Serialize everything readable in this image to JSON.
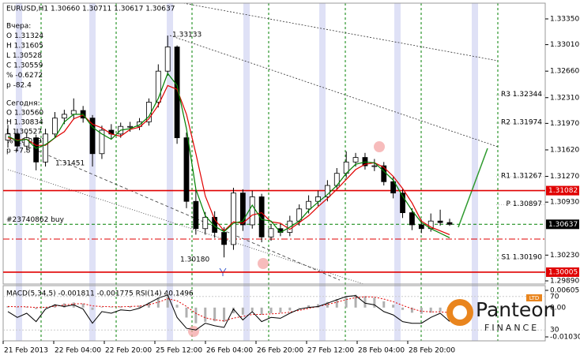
{
  "chart_data": {
    "type": "candlestick",
    "title": "EURUSD,H1  1.30660 1.30711 1.30617 1.30637",
    "info_lines": [
      "Вчера:",
      "O 1.31324",
      "H 1.31605",
      "L 1.30528",
      "C 1.30559",
      "% -0.6272",
      "p -82.4",
      "Сегодня:",
      "O 1.30560",
      "H 1.30834",
      "L 1.30527",
      "% +0.0597",
      "p +7.8"
    ],
    "time_labels": [
      "21 Feb 2013",
      "22 Feb 04:00",
      "22 Feb 20:00",
      "25 Feb 12:00",
      "26 Feb 04:00",
      "26 Feb 20:00",
      "27 Feb 12:00",
      "28 Feb 04:00",
      "28 Feb 20:00"
    ],
    "ylim": [
      1.29848,
      1.33558
    ],
    "yticks": [
      {
        "value": 1.3335,
        "label": "1.33350"
      },
      {
        "value": 1.3301,
        "label": "1.33010"
      },
      {
        "value": 1.3266,
        "label": "1.32660"
      },
      {
        "value": 1.3231,
        "label": "1.32310"
      },
      {
        "value": 1.3197,
        "label": "1.31970"
      },
      {
        "value": 1.3162,
        "label": "1.31620"
      },
      {
        "value": 1.3127,
        "label": "1.31270"
      },
      {
        "value": 1.3093,
        "label": "1.30930"
      },
      {
        "value": 1.3023,
        "label": "1.30230"
      },
      {
        "value": 1.2989,
        "label": "1.29890"
      }
    ],
    "open": [
      1.3175,
      1.3183,
      1.3167,
      1.3178,
      1.3146,
      1.3183,
      1.3204,
      1.3209,
      1.3214,
      1.3204,
      1.3157,
      1.3188,
      1.3183,
      1.3193,
      1.3193,
      1.3199,
      1.3225,
      1.3266,
      1.3298,
      1.3178,
      1.3094,
      1.3058,
      1.3073,
      1.3053,
      1.3037,
      1.3105,
      1.3063,
      1.31,
      1.3047,
      1.3058,
      1.3053,
      1.3068,
      1.3084,
      1.3094,
      1.31,
      1.3115,
      1.3131,
      1.3146,
      1.3152,
      1.3141,
      1.3141,
      1.312,
      1.3105,
      1.3079,
      1.3063,
      1.3058,
      1.3068,
      1.3066
    ],
    "high": [
      1.3195,
      1.319,
      1.3185,
      1.3182,
      1.319,
      1.3212,
      1.3215,
      1.323,
      1.322,
      1.3208,
      1.3194,
      1.3196,
      1.3198,
      1.3199,
      1.3204,
      1.323,
      1.3275,
      1.3313,
      1.33,
      1.3185,
      1.311,
      1.308,
      1.3081,
      1.306,
      1.3112,
      1.311,
      1.3108,
      1.3104,
      1.3064,
      1.3064,
      1.3075,
      1.309,
      1.3102,
      1.3108,
      1.3122,
      1.3138,
      1.316,
      1.3158,
      1.3158,
      1.315,
      1.3146,
      1.3126,
      1.311,
      1.3085,
      1.307,
      1.3078,
      1.3083,
      1.30711
    ],
    "low": [
      1.3165,
      1.316,
      1.3162,
      1.3135,
      1.314,
      1.3178,
      1.3196,
      1.3202,
      1.3198,
      1.314,
      1.315,
      1.3176,
      1.3178,
      1.3186,
      1.3188,
      1.3194,
      1.3218,
      1.326,
      1.317,
      1.3085,
      1.305,
      1.305,
      1.3046,
      1.302,
      1.303,
      1.3055,
      1.3058,
      1.304,
      1.3042,
      1.3048,
      1.3048,
      1.3062,
      1.3078,
      1.3088,
      1.3094,
      1.311,
      1.3125,
      1.314,
      1.3136,
      1.3134,
      1.3115,
      1.3098,
      1.3072,
      1.3056,
      1.3052,
      1.3054,
      1.3062,
      1.30617
    ],
    "close": [
      1.3183,
      1.3167,
      1.3178,
      1.3146,
      1.3183,
      1.3204,
      1.3209,
      1.3214,
      1.3204,
      1.3157,
      1.3188,
      1.3183,
      1.3193,
      1.3193,
      1.3199,
      1.3225,
      1.3266,
      1.3298,
      1.3178,
      1.3094,
      1.3058,
      1.3073,
      1.3053,
      1.3037,
      1.3105,
      1.3063,
      1.31,
      1.3047,
      1.3058,
      1.3053,
      1.3068,
      1.3084,
      1.3094,
      1.31,
      1.3115,
      1.3131,
      1.3146,
      1.3152,
      1.3141,
      1.3141,
      1.312,
      1.3105,
      1.3079,
      1.3063,
      1.3058,
      1.3068,
      1.3066,
      1.30637
    ],
    "up_color": "#ffffff",
    "down_color": "#000000",
    "overlays": [
      {
        "color": "#e00000",
        "values": [
          1.3178,
          1.3175,
          1.3176,
          1.3168,
          1.3168,
          1.3178,
          1.3186,
          1.3203,
          1.3208,
          1.3196,
          1.3191,
          1.3183,
          1.318,
          1.3189,
          1.3192,
          1.3203,
          1.3221,
          1.3247,
          1.3242,
          1.3209,
          1.3157,
          1.3101,
          1.307,
          1.3055,
          1.3067,
          1.3065,
          1.3076,
          1.3079,
          1.3067,
          1.3065,
          1.3057,
          1.3066,
          1.3075,
          1.3087,
          1.3098,
          1.311,
          1.3123,
          1.3136,
          1.3143,
          1.3145,
          1.3139,
          1.3127,
          1.3111,
          1.3092,
          1.3068,
          1.306,
          1.3055,
          1.305
        ]
      },
      {
        "color": "#008000",
        "values": [
          1.318,
          1.3174,
          1.3176,
          1.3164,
          1.3169,
          1.3178,
          1.3199,
          1.3209,
          1.3209,
          1.3192,
          1.3183,
          1.3176,
          1.3188,
          1.319,
          1.3195,
          1.3206,
          1.323,
          1.3263,
          1.3247,
          1.319,
          1.311,
          1.3075,
          1.3061,
          1.3054,
          1.3065,
          1.3068,
          1.3089,
          1.307,
          1.3068,
          1.3053,
          1.306,
          1.3068,
          1.3082,
          1.3093,
          1.3103,
          1.3115,
          1.3131,
          1.3143,
          1.3146,
          1.3145,
          1.3134,
          1.3122,
          1.3101,
          1.3082,
          1.3066,
          1.3058,
          1.3052,
          1.3046
        ]
      }
    ],
    "levels": [
      {
        "value": 1.31082,
        "color": "#e00000",
        "dash": "none"
      },
      {
        "value": 1.30005,
        "color": "#e00000",
        "dash": "none"
      },
      {
        "value": 1.30442,
        "color": "#e00000",
        "dash": "8,3,2,3"
      },
      {
        "value": 1.30637,
        "color": "#008000",
        "dash": "4,3",
        "label": "#23740862 buy"
      }
    ],
    "price_labels": [
      {
        "value": 1.31082,
        "color": "#e00000"
      },
      {
        "value": 1.30637,
        "color": "#000000"
      },
      {
        "value": 1.30005,
        "color": "#e00000"
      }
    ],
    "pivots": [
      {
        "value": 1.32344,
        "label": "R3 1.32344"
      },
      {
        "value": 1.31974,
        "label": "R2 1.31974"
      },
      {
        "value": 1.31267,
        "label": "R1 1.31267"
      },
      {
        "value": 1.30897,
        "label": "P 1.30897"
      },
      {
        "value": 1.3019,
        "label": "S1 1.30190"
      }
    ],
    "annotations": [
      "1.33133",
      "1.31451",
      "1.30180"
    ],
    "indicator_title": "MACD(5,34,5) -0.001811 -0.001775  RSI(14) 40.1496",
    "macd_ylim": [
      -0.01169,
      0.00772
    ],
    "macd_ticks": [
      0.006055,
      {
        "value": 0,
        "label": "0.00"
      },
      -0.010304
    ],
    "macd": [
      0.0005,
      0.0002,
      0.0003,
      -0.0005,
      0.0002,
      0.0012,
      0.0015,
      0.0018,
      0.0014,
      -0.0008,
      0.0002,
      0.0001,
      0.0004,
      0.0005,
      0.0007,
      0.0018,
      0.0035,
      0.005,
      0.001,
      -0.0035,
      -0.0055,
      -0.005,
      -0.0048,
      -0.005,
      -0.002,
      -0.0025,
      -0.0012,
      -0.0025,
      -0.002,
      -0.0018,
      -0.001,
      0,
      0.0008,
      0.0012,
      0.002,
      0.003,
      0.004,
      0.0045,
      0.004,
      0.0035,
      0.0022,
      0.001,
      -0.0008,
      -0.0018,
      -0.0022,
      -0.0018,
      -0.0014,
      -0.001811
    ],
    "macd_signal": [
      0.0004,
      0.0003,
      0.0003,
      0,
      0.0001,
      0.0005,
      0.0009,
      0.0013,
      0.0014,
      0.0006,
      0.0004,
      0.0003,
      0.0003,
      0.0004,
      0.0005,
      0.001,
      0.0019,
      0.0031,
      0.0024,
      0.0004,
      -0.002,
      -0.0036,
      -0.0043,
      -0.0047,
      -0.0037,
      -0.0031,
      -0.0024,
      -0.0024,
      -0.0022,
      -0.002,
      -0.0016,
      -0.001,
      -0.0003,
      0.0004,
      0.0011,
      0.0019,
      0.0028,
      0.0035,
      0.0038,
      0.0037,
      0.003,
      0.0021,
      0.0008,
      -0.0004,
      -0.0013,
      -0.0015,
      -0.0015,
      -0.001775
    ],
    "rsi_ylim": [
      17,
      83
    ],
    "rsi_ticks": [
      70,
      30
    ],
    "rsi": [
      52,
      45,
      50,
      40,
      55,
      60,
      58,
      60,
      55,
      38,
      52,
      50,
      54,
      53,
      56,
      62,
      68,
      72,
      45,
      32,
      30,
      38,
      35,
      33,
      55,
      42,
      52,
      40,
      45,
      44,
      50,
      55,
      57,
      58,
      62,
      66,
      70,
      71,
      62,
      60,
      52,
      48,
      40,
      38,
      38,
      45,
      50,
      40.1496
    ],
    "logo": {
      "name": "Panteon",
      "sub": "FINANCE",
      "badge": "LTD"
    }
  }
}
